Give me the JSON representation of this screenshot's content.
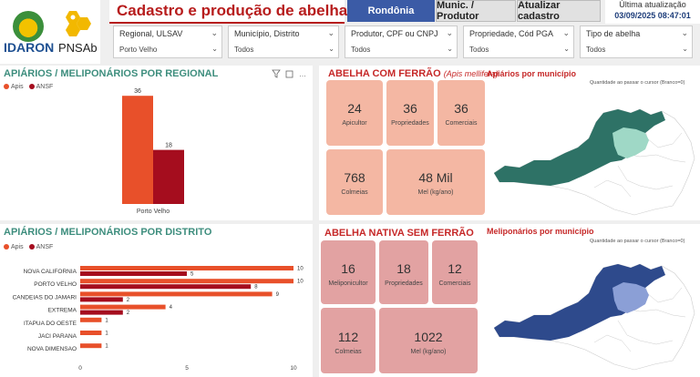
{
  "logos": {
    "idaron": "IDARON",
    "pnsab": "PNSAb"
  },
  "header": {
    "title": "Cadastro e produção de abelhas - RO",
    "buttons": {
      "rondonia": "Rondônia",
      "munic": "Munic. / Produtor",
      "atualizar": "Atualizar cadastro"
    },
    "update_label": "Última atualização",
    "update_value": "03/09/2025 08:47:01"
  },
  "filters": [
    {
      "label": "Regional, ULSAV",
      "value": "Porto Velho"
    },
    {
      "label": "Município, Distrito",
      "value": "Todos"
    },
    {
      "label": "Produtor, CPF ou CNPJ",
      "value": "Todos"
    },
    {
      "label": "Propriedade, Cód PGA",
      "value": "Todos"
    },
    {
      "label": "Tipo de abelha",
      "value": "Todos"
    }
  ],
  "colors": {
    "apis": "#e8502a",
    "ansf": "#a50d1e",
    "teal": "#3e8e7e",
    "red": "#c62828",
    "navy": "#3b5ba6"
  },
  "regional_panel": {
    "title": "APIÁRIOS / MELIPONÁRIOS POR REGIONAL",
    "legend": [
      "Apis",
      "ANSF"
    ]
  },
  "distrito_panel": {
    "title": "APIÁRIOS / MELIPONÁRIOS POR DISTRITO",
    "legend": [
      "Apis",
      "ANSF"
    ]
  },
  "chart_data": [
    {
      "type": "bar",
      "title": "APIÁRIOS / MELIPONÁRIOS POR REGIONAL",
      "categories": [
        "Porto Velho"
      ],
      "series": [
        {
          "name": "Apis",
          "values": [
            36
          ]
        },
        {
          "name": "ANSF",
          "values": [
            18
          ]
        }
      ],
      "ylim": [
        0,
        40
      ],
      "legend": "top-left"
    },
    {
      "type": "bar",
      "orientation": "horizontal",
      "title": "APIÁRIOS / MELIPONÁRIOS POR DISTRITO",
      "categories": [
        "NOVA CALIFORNIA",
        "PORTO VELHO",
        "CANDEIAS DO JAMARI",
        "EXTREMA",
        "ITAPUA DO OESTE",
        "JACI PARANA",
        "NOVA DIMENSAO"
      ],
      "series": [
        {
          "name": "Apis",
          "values": [
            10,
            10,
            9,
            4,
            1,
            1,
            1
          ]
        },
        {
          "name": "ANSF",
          "values": [
            5,
            8,
            2,
            2,
            0,
            0,
            0
          ]
        }
      ],
      "xticks": [
        "0",
        "5",
        "10"
      ],
      "xlim": [
        0,
        10
      ],
      "legend": "top-left"
    }
  ],
  "apis_panel": {
    "title_main": "ABELHA COM FERRÃO",
    "title_sub": "(Apis mellifera)",
    "map_title": "Apiários por município",
    "map_hint": "Quantidade ao passar o cursor (Branco=0)",
    "kpis": [
      {
        "value": "24",
        "label": "Apicultor"
      },
      {
        "value": "36",
        "label": "Propriedades"
      },
      {
        "value": "36",
        "label": "Comerciais"
      },
      {
        "value": "768",
        "label": "Colmeias"
      },
      {
        "value": "48 Mil",
        "label": "Mel (kg/ano)"
      }
    ]
  },
  "ansf_panel": {
    "title_main": "ABELHA NATIVA SEM FERRÃO",
    "map_title": "Meliponários por município",
    "map_hint": "Quantidade ao passar o cursor (Branco=0)",
    "kpis": [
      {
        "value": "16",
        "label": "Meliponicultor"
      },
      {
        "value": "18",
        "label": "Propriedades"
      },
      {
        "value": "12",
        "label": "Comerciais"
      },
      {
        "value": "112",
        "label": "Colmeias"
      },
      {
        "value": "1022",
        "label": "Mel (kg/ano)"
      }
    ]
  }
}
